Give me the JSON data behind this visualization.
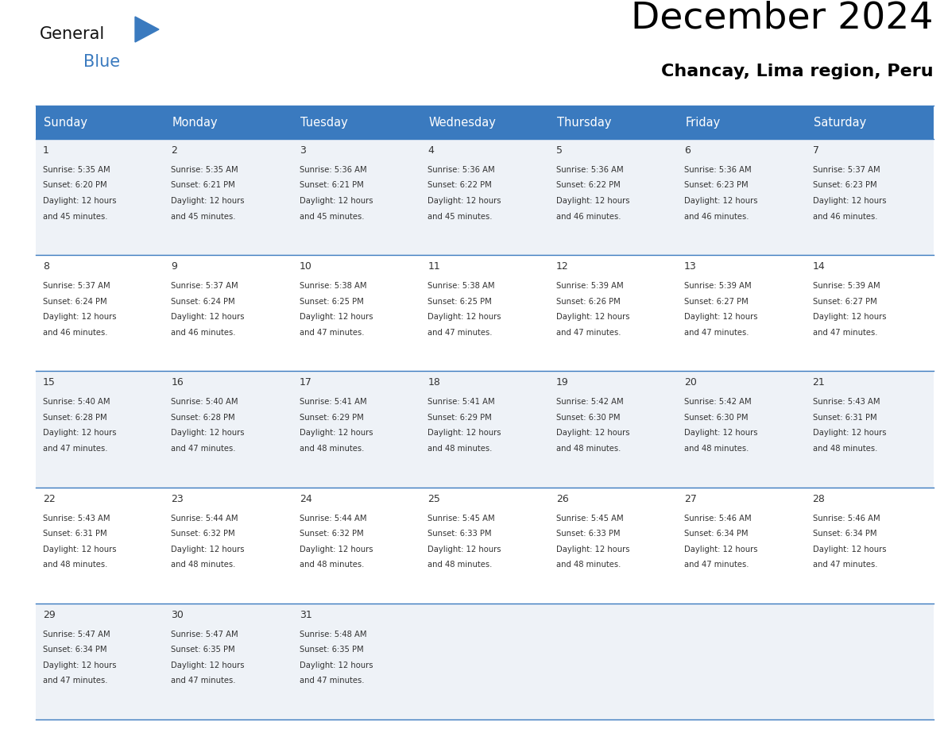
{
  "title": "December 2024",
  "subtitle": "Chancay, Lima region, Peru",
  "header_bg": "#3a7abf",
  "header_text_color": "#ffffff",
  "header_font_size": 10.5,
  "day_headers": [
    "Sunday",
    "Monday",
    "Tuesday",
    "Wednesday",
    "Thursday",
    "Friday",
    "Saturday"
  ],
  "title_font_size": 34,
  "subtitle_font_size": 16,
  "cell_font_size": 7.2,
  "day_num_font_size": 9,
  "calendar_data": [
    [
      {
        "day": 1,
        "sunrise": "5:35 AM",
        "sunset": "6:20 PM",
        "daylight_hours": 12,
        "daylight_minutes": 45
      },
      {
        "day": 2,
        "sunrise": "5:35 AM",
        "sunset": "6:21 PM",
        "daylight_hours": 12,
        "daylight_minutes": 45
      },
      {
        "day": 3,
        "sunrise": "5:36 AM",
        "sunset": "6:21 PM",
        "daylight_hours": 12,
        "daylight_minutes": 45
      },
      {
        "day": 4,
        "sunrise": "5:36 AM",
        "sunset": "6:22 PM",
        "daylight_hours": 12,
        "daylight_minutes": 45
      },
      {
        "day": 5,
        "sunrise": "5:36 AM",
        "sunset": "6:22 PM",
        "daylight_hours": 12,
        "daylight_minutes": 46
      },
      {
        "day": 6,
        "sunrise": "5:36 AM",
        "sunset": "6:23 PM",
        "daylight_hours": 12,
        "daylight_minutes": 46
      },
      {
        "day": 7,
        "sunrise": "5:37 AM",
        "sunset": "6:23 PM",
        "daylight_hours": 12,
        "daylight_minutes": 46
      }
    ],
    [
      {
        "day": 8,
        "sunrise": "5:37 AM",
        "sunset": "6:24 PM",
        "daylight_hours": 12,
        "daylight_minutes": 46
      },
      {
        "day": 9,
        "sunrise": "5:37 AM",
        "sunset": "6:24 PM",
        "daylight_hours": 12,
        "daylight_minutes": 46
      },
      {
        "day": 10,
        "sunrise": "5:38 AM",
        "sunset": "6:25 PM",
        "daylight_hours": 12,
        "daylight_minutes": 47
      },
      {
        "day": 11,
        "sunrise": "5:38 AM",
        "sunset": "6:25 PM",
        "daylight_hours": 12,
        "daylight_minutes": 47
      },
      {
        "day": 12,
        "sunrise": "5:39 AM",
        "sunset": "6:26 PM",
        "daylight_hours": 12,
        "daylight_minutes": 47
      },
      {
        "day": 13,
        "sunrise": "5:39 AM",
        "sunset": "6:27 PM",
        "daylight_hours": 12,
        "daylight_minutes": 47
      },
      {
        "day": 14,
        "sunrise": "5:39 AM",
        "sunset": "6:27 PM",
        "daylight_hours": 12,
        "daylight_minutes": 47
      }
    ],
    [
      {
        "day": 15,
        "sunrise": "5:40 AM",
        "sunset": "6:28 PM",
        "daylight_hours": 12,
        "daylight_minutes": 47
      },
      {
        "day": 16,
        "sunrise": "5:40 AM",
        "sunset": "6:28 PM",
        "daylight_hours": 12,
        "daylight_minutes": 47
      },
      {
        "day": 17,
        "sunrise": "5:41 AM",
        "sunset": "6:29 PM",
        "daylight_hours": 12,
        "daylight_minutes": 48
      },
      {
        "day": 18,
        "sunrise": "5:41 AM",
        "sunset": "6:29 PM",
        "daylight_hours": 12,
        "daylight_minutes": 48
      },
      {
        "day": 19,
        "sunrise": "5:42 AM",
        "sunset": "6:30 PM",
        "daylight_hours": 12,
        "daylight_minutes": 48
      },
      {
        "day": 20,
        "sunrise": "5:42 AM",
        "sunset": "6:30 PM",
        "daylight_hours": 12,
        "daylight_minutes": 48
      },
      {
        "day": 21,
        "sunrise": "5:43 AM",
        "sunset": "6:31 PM",
        "daylight_hours": 12,
        "daylight_minutes": 48
      }
    ],
    [
      {
        "day": 22,
        "sunrise": "5:43 AM",
        "sunset": "6:31 PM",
        "daylight_hours": 12,
        "daylight_minutes": 48
      },
      {
        "day": 23,
        "sunrise": "5:44 AM",
        "sunset": "6:32 PM",
        "daylight_hours": 12,
        "daylight_minutes": 48
      },
      {
        "day": 24,
        "sunrise": "5:44 AM",
        "sunset": "6:32 PM",
        "daylight_hours": 12,
        "daylight_minutes": 48
      },
      {
        "day": 25,
        "sunrise": "5:45 AM",
        "sunset": "6:33 PM",
        "daylight_hours": 12,
        "daylight_minutes": 48
      },
      {
        "day": 26,
        "sunrise": "5:45 AM",
        "sunset": "6:33 PM",
        "daylight_hours": 12,
        "daylight_minutes": 48
      },
      {
        "day": 27,
        "sunrise": "5:46 AM",
        "sunset": "6:34 PM",
        "daylight_hours": 12,
        "daylight_minutes": 47
      },
      {
        "day": 28,
        "sunrise": "5:46 AM",
        "sunset": "6:34 PM",
        "daylight_hours": 12,
        "daylight_minutes": 47
      }
    ],
    [
      {
        "day": 29,
        "sunrise": "5:47 AM",
        "sunset": "6:34 PM",
        "daylight_hours": 12,
        "daylight_minutes": 47
      },
      {
        "day": 30,
        "sunrise": "5:47 AM",
        "sunset": "6:35 PM",
        "daylight_hours": 12,
        "daylight_minutes": 47
      },
      {
        "day": 31,
        "sunrise": "5:48 AM",
        "sunset": "6:35 PM",
        "daylight_hours": 12,
        "daylight_minutes": 47
      },
      null,
      null,
      null,
      null
    ]
  ],
  "logo_color_general": "#111111",
  "logo_color_blue": "#3a7abf",
  "logo_triangle_color": "#3a7abf",
  "row_bg_odd": "#eef2f7",
  "row_bg_even": "#ffffff",
  "border_color": "#3a7abf",
  "text_color": "#333333"
}
